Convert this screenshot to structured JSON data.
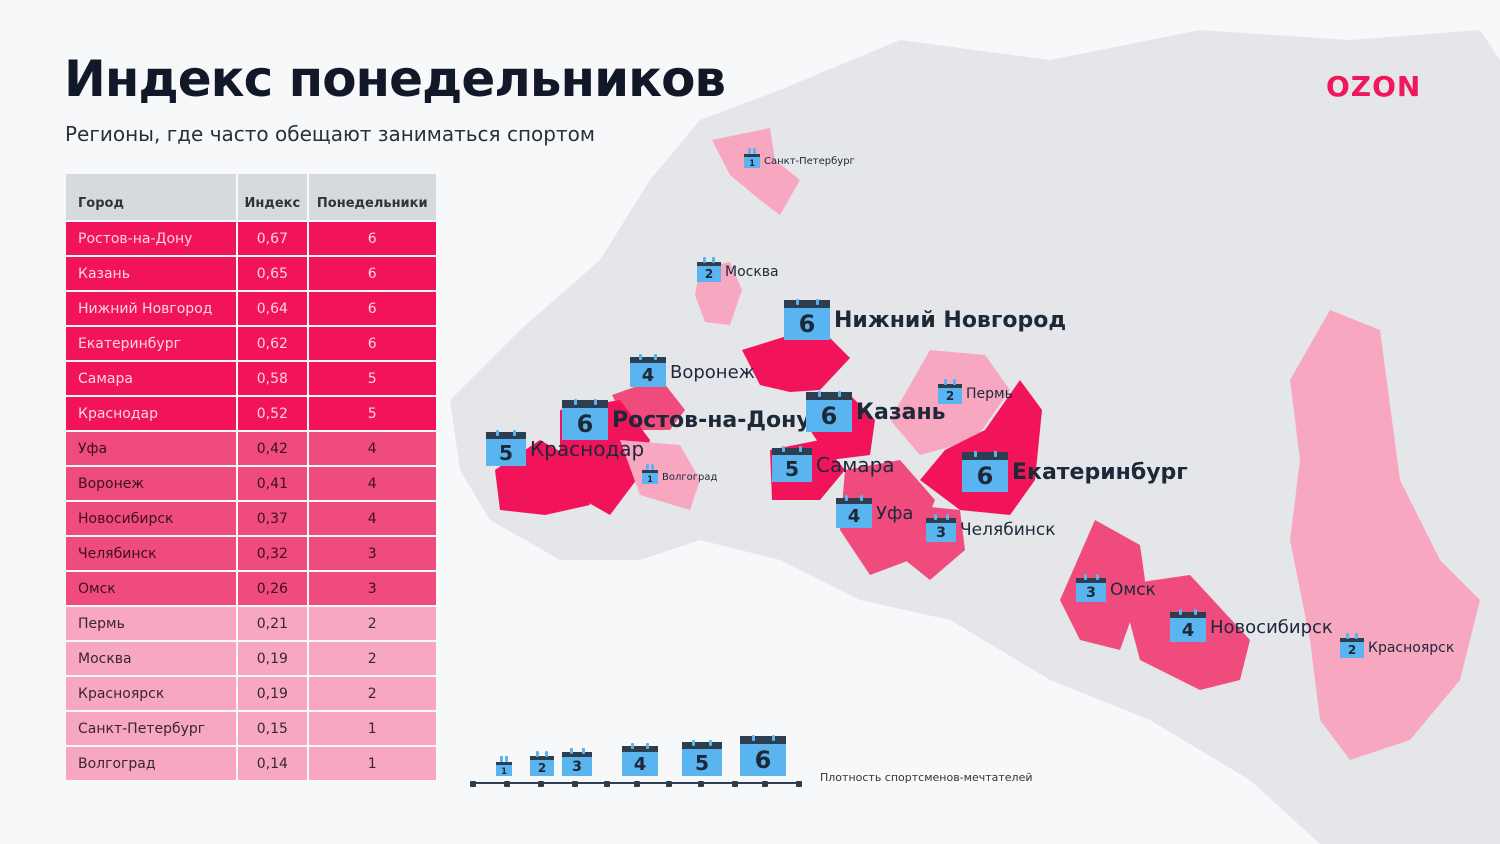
{
  "title": "Индекс понедельников",
  "subtitle": "Регионы, где часто обещают заниматься спортом",
  "logo": "OZON",
  "table": {
    "headers": [
      "Город",
      "Индекс",
      "Понедельники"
    ],
    "rows": [
      [
        "Ростов-на-Дону",
        "0,67",
        "6"
      ],
      [
        "Казань",
        "0,65",
        "6"
      ],
      [
        "Нижний Новгород",
        "0,64",
        "6"
      ],
      [
        "Екатеринбург",
        "0,62",
        "6"
      ],
      [
        "Самара",
        "0,58",
        "5"
      ],
      [
        "Краснодар",
        "0,52",
        "5"
      ],
      [
        "Уфа",
        "0,42",
        "4"
      ],
      [
        "Воронеж",
        "0,41",
        "4"
      ],
      [
        "Новосибирск",
        "0,37",
        "4"
      ],
      [
        "Челябинск",
        "0,32",
        "3"
      ],
      [
        "Омск",
        "0,26",
        "3"
      ],
      [
        "Пермь",
        "0,21",
        "2"
      ],
      [
        "Москва",
        "0,19",
        "2"
      ],
      [
        "Красноярск",
        "0,19",
        "2"
      ],
      [
        "Санкт-Петербург",
        "0,15",
        "1"
      ],
      [
        "Волгоград",
        "0,14",
        "1"
      ]
    ]
  },
  "markers": [
    {
      "city": "Санкт-Петербург",
      "value": "1"
    },
    {
      "city": "Москва",
      "value": "2"
    },
    {
      "city": "Нижний Новгород",
      "value": "6"
    },
    {
      "city": "Воронеж",
      "value": "4"
    },
    {
      "city": "Ростов-на-Дону",
      "value": "6"
    },
    {
      "city": "Казань",
      "value": "6"
    },
    {
      "city": "Пермь",
      "value": "2"
    },
    {
      "city": "Краснодар",
      "value": "5"
    },
    {
      "city": "Волгоград",
      "value": "1"
    },
    {
      "city": "Самара",
      "value": "5"
    },
    {
      "city": "Екатеринбург",
      "value": "6"
    },
    {
      "city": "Уфа",
      "value": "4"
    },
    {
      "city": "Челябинск",
      "value": "3"
    },
    {
      "city": "Омск",
      "value": "3"
    },
    {
      "city": "Новосибирск",
      "value": "4"
    },
    {
      "city": "Красноярск",
      "value": "2"
    }
  ],
  "legend": {
    "values": [
      "1",
      "2",
      "3",
      "4",
      "5",
      "6"
    ],
    "label": "Плотность спортсменов-мечтателей"
  },
  "colors": {
    "accent": "#f1175a",
    "high": "#f2145a",
    "mid": "#f04b7d",
    "low": "#f7a8c0",
    "calendar": "#5ab4f0"
  }
}
